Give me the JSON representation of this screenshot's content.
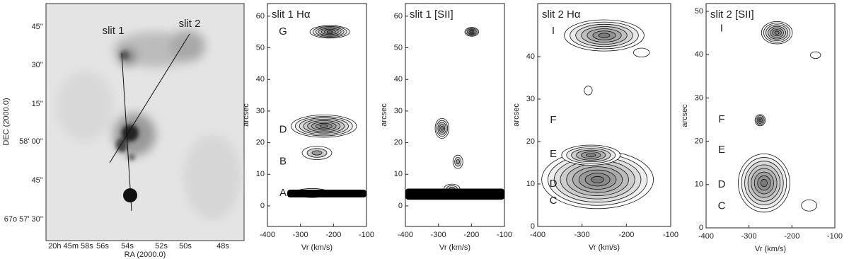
{
  "image_panel": {
    "xlabel": "RA (2000.0)",
    "ylabel": "DEC (2000.0)",
    "xticklabels": [
      "20h 45m 58s",
      "56s",
      "54s",
      "52s",
      "50s",
      "48s"
    ],
    "yticklabels": [
      "45''",
      "30''",
      "15''",
      "58' 00''",
      "45''",
      "67o 57' 30''"
    ],
    "slit_labels": [
      "slit 1",
      "slit 2"
    ]
  },
  "chart_data": [
    {
      "type": "contour",
      "title": "slit 1 Hα",
      "xlabel": "Vr (km/s)",
      "ylabel": "arcsec",
      "xlim": [
        -400,
        -100
      ],
      "ylim": [
        -6.5,
        64
      ],
      "xticks": [
        -400,
        -300,
        -200,
        -100
      ],
      "yticks": [
        0,
        10,
        20,
        30,
        40,
        50,
        60
      ],
      "annotations": [
        {
          "text": "G",
          "y": 55
        },
        {
          "text": "D",
          "y": 24
        },
        {
          "text": "B",
          "y": 14
        },
        {
          "text": "A",
          "y": 4
        }
      ]
    },
    {
      "type": "contour",
      "title": "slit 1 [SII]",
      "xlabel": "Vr (km/s)",
      "ylabel": "arcsec",
      "xlim": [
        -400,
        -100
      ],
      "ylim": [
        -6.5,
        64
      ],
      "xticks": [
        -400,
        -300,
        -200,
        -100
      ],
      "yticks": [
        0,
        10,
        20,
        30,
        40,
        50,
        60
      ],
      "annotations": []
    },
    {
      "type": "contour",
      "title": "slit 2 Hα",
      "xlabel": "Vr (km/s)",
      "ylabel": "arcsec",
      "xlim": [
        -400,
        -100
      ],
      "ylim": [
        0,
        52.5
      ],
      "xticks": [
        -400,
        -300,
        -200,
        -100
      ],
      "yticks": [
        0,
        10,
        20,
        30,
        40
      ],
      "annotations": [
        {
          "text": "I",
          "y": 46
        },
        {
          "text": "F",
          "y": 25
        },
        {
          "text": "E",
          "y": 17
        },
        {
          "text": "D",
          "y": 10
        },
        {
          "text": "C",
          "y": 6
        }
      ]
    },
    {
      "type": "contour",
      "title": "slit 2 [SII]",
      "xlabel": "Vr (km/s)",
      "ylabel": "arcsec",
      "xlim": [
        -400,
        -100
      ],
      "ylim": [
        0,
        51.8
      ],
      "xticks": [
        -400,
        -300,
        -200,
        -100
      ],
      "yticks": [
        0,
        10,
        20,
        30,
        40,
        50
      ],
      "annotations": [
        {
          "text": "I",
          "y": 46
        },
        {
          "text": "F",
          "y": 25
        },
        {
          "text": "E",
          "y": 18
        },
        {
          "text": "D",
          "y": 10
        },
        {
          "text": "C",
          "y": 5
        }
      ]
    }
  ]
}
